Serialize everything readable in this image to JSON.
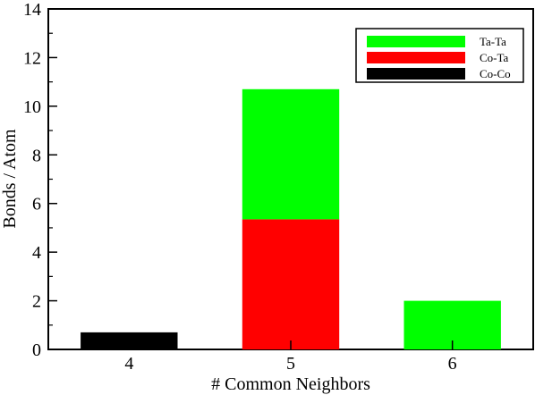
{
  "chart_data": {
    "type": "bar",
    "stacked": true,
    "categories": [
      "4",
      "5",
      "6"
    ],
    "series": [
      {
        "name": "Co-Co",
        "color": "#000000",
        "values": [
          0.7,
          0,
          0
        ]
      },
      {
        "name": "Co-Ta",
        "color": "#ff0000",
        "values": [
          0,
          5.35,
          0
        ]
      },
      {
        "name": "Ta-Ta",
        "color": "#00ff00",
        "values": [
          0,
          5.35,
          2.0
        ]
      }
    ],
    "legend_order": [
      "Ta-Ta",
      "Co-Ta",
      "Co-Co"
    ],
    "xlabel": "# Common Neighbors",
    "ylabel": "Bonds / Atom",
    "ylim": [
      0,
      14
    ],
    "yticks": [
      "0",
      "2",
      "4",
      "6",
      "8",
      "10",
      "12",
      "14"
    ],
    "grid": false,
    "legend_position": "top-right"
  }
}
